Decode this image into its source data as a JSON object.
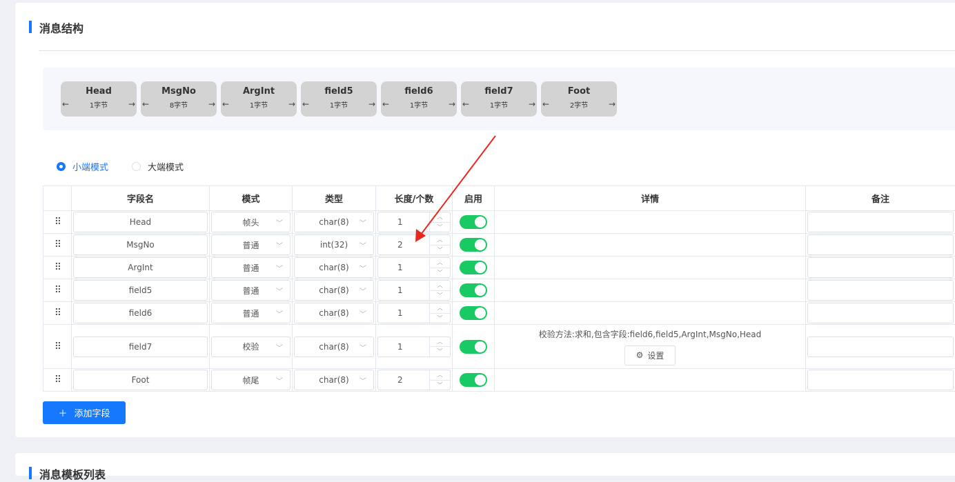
{
  "section1": {
    "title": "消息结构"
  },
  "structure": [
    {
      "name": "Head",
      "size": "1字节"
    },
    {
      "name": "MsgNo",
      "size": "8字节"
    },
    {
      "name": "ArgInt",
      "size": "1字节"
    },
    {
      "name": "field5",
      "size": "1字节"
    },
    {
      "name": "field6",
      "size": "1字节"
    },
    {
      "name": "field7",
      "size": "1字节"
    },
    {
      "name": "Foot",
      "size": "2字节"
    }
  ],
  "arrows": {
    "left": "←",
    "right": "→"
  },
  "endian": {
    "options": [
      "小端模式",
      "大端模式"
    ],
    "selected": "小端模式"
  },
  "table": {
    "headers": [
      "字段名",
      "模式",
      "类型",
      "长度/个数",
      "启用",
      "详情",
      "备注"
    ],
    "rows": [
      {
        "name": "Head",
        "mode": "帧头",
        "type": "char(8)",
        "length": "1",
        "enabled": true,
        "detail": ""
      },
      {
        "name": "MsgNo",
        "mode": "普通",
        "type": "int(32)",
        "length": "2",
        "enabled": true,
        "detail": ""
      },
      {
        "name": "ArgInt",
        "mode": "普通",
        "type": "char(8)",
        "length": "1",
        "enabled": true,
        "detail": ""
      },
      {
        "name": "field5",
        "mode": "普通",
        "type": "char(8)",
        "length": "1",
        "enabled": true,
        "detail": ""
      },
      {
        "name": "field6",
        "mode": "普通",
        "type": "char(8)",
        "length": "1",
        "enabled": true,
        "detail": ""
      },
      {
        "name": "field7",
        "mode": "校验",
        "type": "char(8)",
        "length": "1",
        "enabled": true,
        "detail": "校验方法:求和,包含字段:field6,field5,ArgInt,MsgNo,Head",
        "action": "设置"
      },
      {
        "name": "Foot",
        "mode": "帧尾",
        "type": "char(8)",
        "length": "2",
        "enabled": true,
        "detail": ""
      }
    ]
  },
  "add_button": "添加字段",
  "section2": {
    "title": "消息模板列表"
  },
  "colors": {
    "primary": "#1677ff",
    "switch_on": "#18c964",
    "annotation_arrow": "#e8281e"
  }
}
